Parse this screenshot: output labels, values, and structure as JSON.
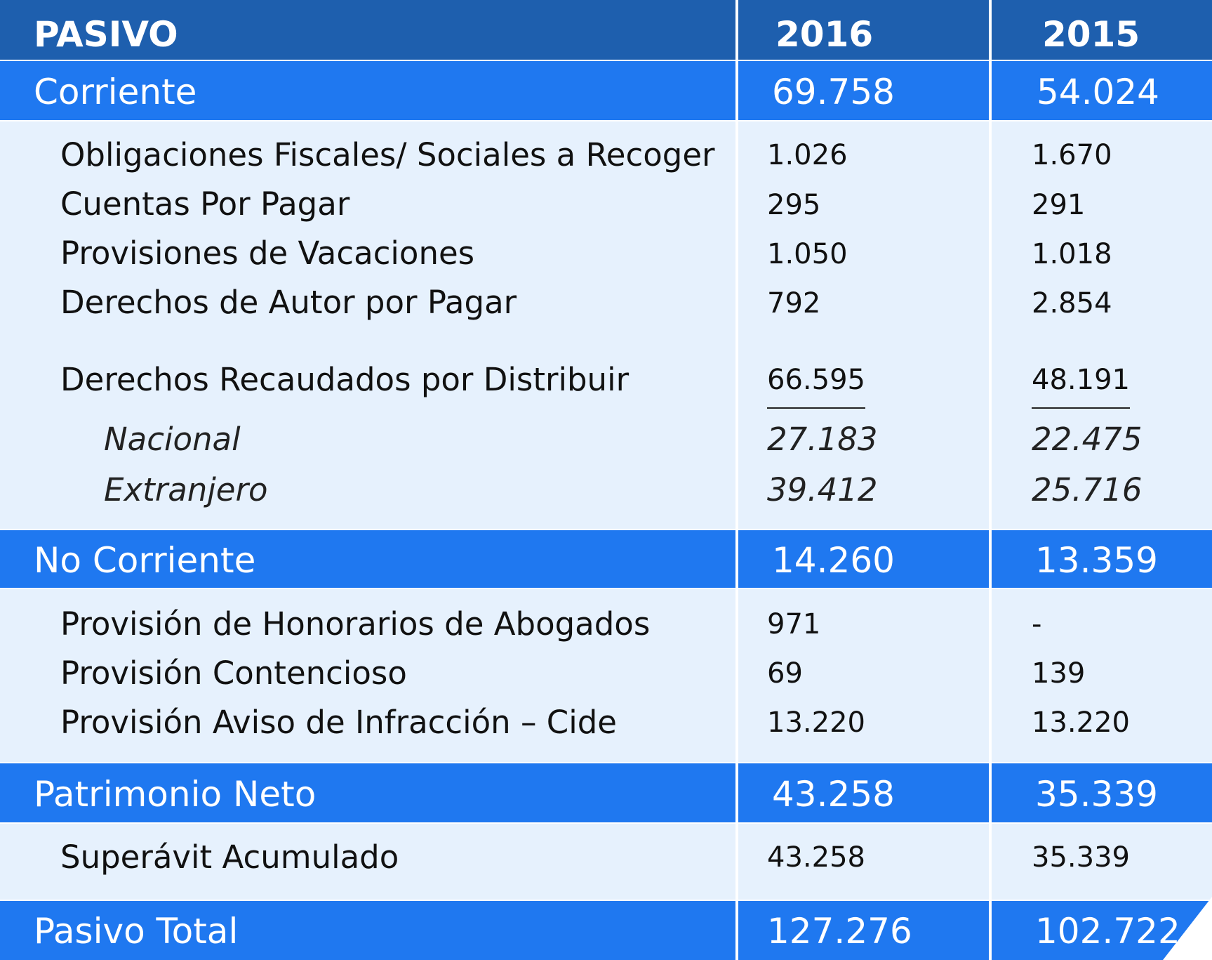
{
  "header": {
    "title": "PASIVO",
    "col1": "2016",
    "col2": "2015"
  },
  "corriente": {
    "label": "Corriente",
    "v2016": "69.758",
    "v2015": "54.024",
    "rows": [
      {
        "label": "Obligaciones Fiscales/ Sociales a Recoger",
        "v2016": "1.026",
        "v2015": "1.670"
      },
      {
        "label": "Cuentas Por Pagar",
        "v2016": "295",
        "v2015": "291"
      },
      {
        "label": "Provisiones de Vacaciones",
        "v2016": "1.050",
        "v2015": "1.018"
      },
      {
        "label": "Derechos de Autor por Pagar",
        "v2016": "792",
        "v2015": "2.854"
      },
      {
        "label": "Derechos Recaudados por Distribuir",
        "v2016": "66.595",
        "v2015": "48.191"
      }
    ],
    "subrows": [
      {
        "label": "Nacional",
        "v2016": "27.183",
        "v2015": "22.475"
      },
      {
        "label": "Extranjero",
        "v2016": "39.412",
        "v2015": "25.716"
      }
    ]
  },
  "no_corriente": {
    "label": "No Corriente",
    "v2016": "14.260",
    "v2015": "13.359",
    "rows": [
      {
        "label": "Provisión de Honorarios de Abogados",
        "v2016": "971",
        "v2015": "-"
      },
      {
        "label": "Provisión Contencioso",
        "v2016": "69",
        "v2015": "139"
      },
      {
        "label": "Provisión Aviso de Infracción – Cide",
        "v2016": "13.220",
        "v2015": "13.220"
      }
    ]
  },
  "patrimonio": {
    "label": "Patrimonio Neto",
    "v2016": "43.258",
    "v2015": "35.339",
    "rows": [
      {
        "label": "Superávit Acumulado",
        "v2016": "43.258",
        "v2015": "35.339"
      }
    ]
  },
  "total": {
    "label": "Pasivo Total",
    "v2016": "127.276",
    "v2015": "102.722"
  },
  "colors": {
    "header": "#1e5fae",
    "band": "#1f78f0",
    "body": "#e6f1fd"
  }
}
